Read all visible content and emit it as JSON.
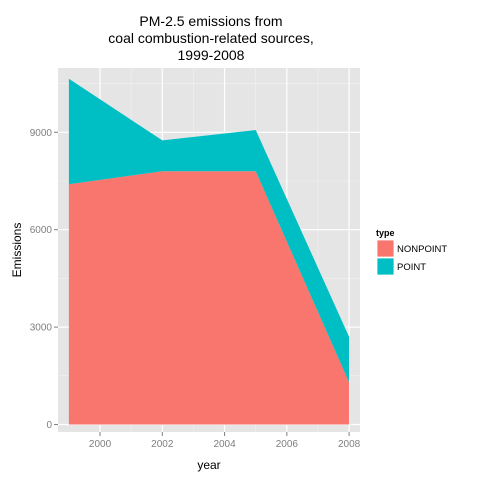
{
  "chart_data": {
    "type": "area",
    "stacked": true,
    "title_lines": [
      "PM-2.5 emissions from",
      "coal combustion-related sources,",
      "1999-2008"
    ],
    "xlabel": "year",
    "ylabel": "Emissions",
    "x": [
      1999,
      2002,
      2005,
      2008
    ],
    "xticks": [
      2000,
      2002,
      2004,
      2006,
      2008
    ],
    "xlim": [
      1998.65,
      2008.35
    ],
    "yticks": [
      0,
      3000,
      6000,
      9000
    ],
    "ylim": [
      -230,
      10980
    ],
    "grid": true,
    "legend": {
      "title": "type",
      "position": "right"
    },
    "series": [
      {
        "name": "NONPOINT",
        "color": "#F8766D",
        "values": [
          7400,
          7800,
          7800,
          1300
        ]
      },
      {
        "name": "POINT",
        "color": "#00BFC4",
        "values": [
          3250,
          950,
          1270,
          1400
        ]
      }
    ],
    "panel_bg": "#E5E5E5",
    "grid_major_color": "#FFFFFF",
    "grid_minor_color": "#F2F2F2"
  }
}
